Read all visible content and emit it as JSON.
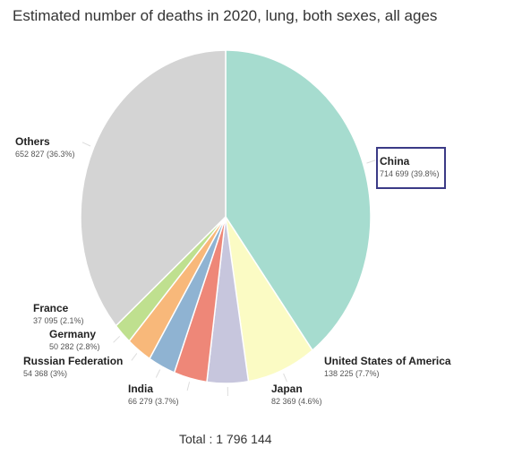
{
  "title": "Estimated number of deaths in 2020, lung, both sexes, all ages",
  "total_text": "Total : 1 796 144",
  "highlight_color": "#3b3a86",
  "chart_data": {
    "type": "pie",
    "title": "Estimated number of deaths in 2020, lung, both sexes, all ages",
    "total": 1796144,
    "slices": [
      {
        "label": "China",
        "value": 714699,
        "value_text": "714 699 (39.8%)",
        "percent": 39.8,
        "color": "#a6dccf"
      },
      {
        "label": "United States of America",
        "value": 138225,
        "value_text": "138 225 (7.7%)",
        "percent": 7.7,
        "color": "#fbfbc4"
      },
      {
        "label": "Japan",
        "value": 82369,
        "value_text": "82 369 (4.6%)",
        "percent": 4.6,
        "color": "#c7c6dd"
      },
      {
        "label": "India",
        "value": 66279,
        "value_text": "66 279 (3.7%)",
        "percent": 3.7,
        "color": "#ee8778"
      },
      {
        "label": "Russian Federation",
        "value": 54368,
        "value_text": "54 368 (3%)",
        "percent": 3.0,
        "color": "#8fb3d2"
      },
      {
        "label": "Germany",
        "value": 50282,
        "value_text": "50 282 (2.8%)",
        "percent": 2.8,
        "color": "#f8b87a"
      },
      {
        "label": "France",
        "value": 37095,
        "value_text": "37 095 (2.1%)",
        "percent": 2.1,
        "color": "#bfe08f"
      },
      {
        "label": "Others",
        "value": 652827,
        "value_text": "652 827 (36.3%)",
        "percent": 36.3,
        "color": "#d4d4d4"
      }
    ]
  }
}
